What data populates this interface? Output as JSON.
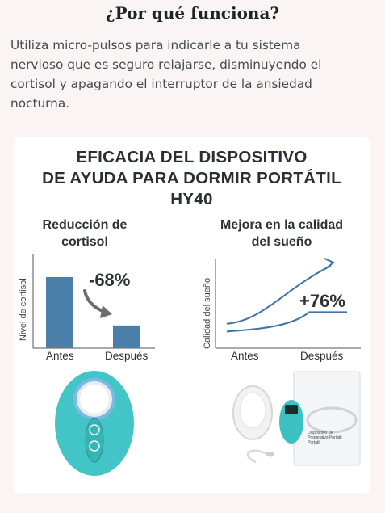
{
  "section": {
    "heading": "¿Por qué funciona?",
    "intro_lines": [
      "Utiliza micro-pulsos para indicarle a tu sistema",
      "nervioso que es seguro relajarse, disminuyendo el",
      "cortisol y apagando el interruptor de la ansiedad",
      "nocturna."
    ]
  },
  "infographic": {
    "title_lines": [
      "EFICACIA DEL DISPOSITIVO",
      "DE AYUDA PARA DORMIR PORTÁTIL",
      "HY40"
    ],
    "left_panel": {
      "title_lines": [
        "Reducción de",
        "cortisol"
      ],
      "ylabel": "Nivel de cortisol",
      "change_label": "-68%"
    },
    "right_panel": {
      "title_lines": [
        "Mejora en la calidad",
        "del sueño"
      ],
      "ylabel": "Calidad del sueño",
      "change_label": "+76%"
    },
    "package_caption": [
      "Dispositivo De",
      "Preparativo Portatil",
      "Portatil"
    ]
  },
  "chart_data": [
    {
      "type": "bar",
      "categories": [
        "Antes",
        "Después"
      ],
      "values": [
        100,
        32
      ],
      "ylabel": "Nivel de cortisol",
      "annotation": "-68%",
      "color": "#4a7fa9"
    },
    {
      "type": "line",
      "x": [
        "Antes",
        "Después"
      ],
      "ylabel": "Calidad del sueño",
      "annotation": "+76%",
      "color": "#3d73a3",
      "series": [
        {
          "values": [
            0.2,
            0.95
          ]
        },
        {
          "values": [
            0.1,
            0.35
          ]
        }
      ]
    }
  ],
  "colors": {
    "bar": "#4a7fa9",
    "line": "#3d73a3",
    "device": "#3fc7c9"
  }
}
